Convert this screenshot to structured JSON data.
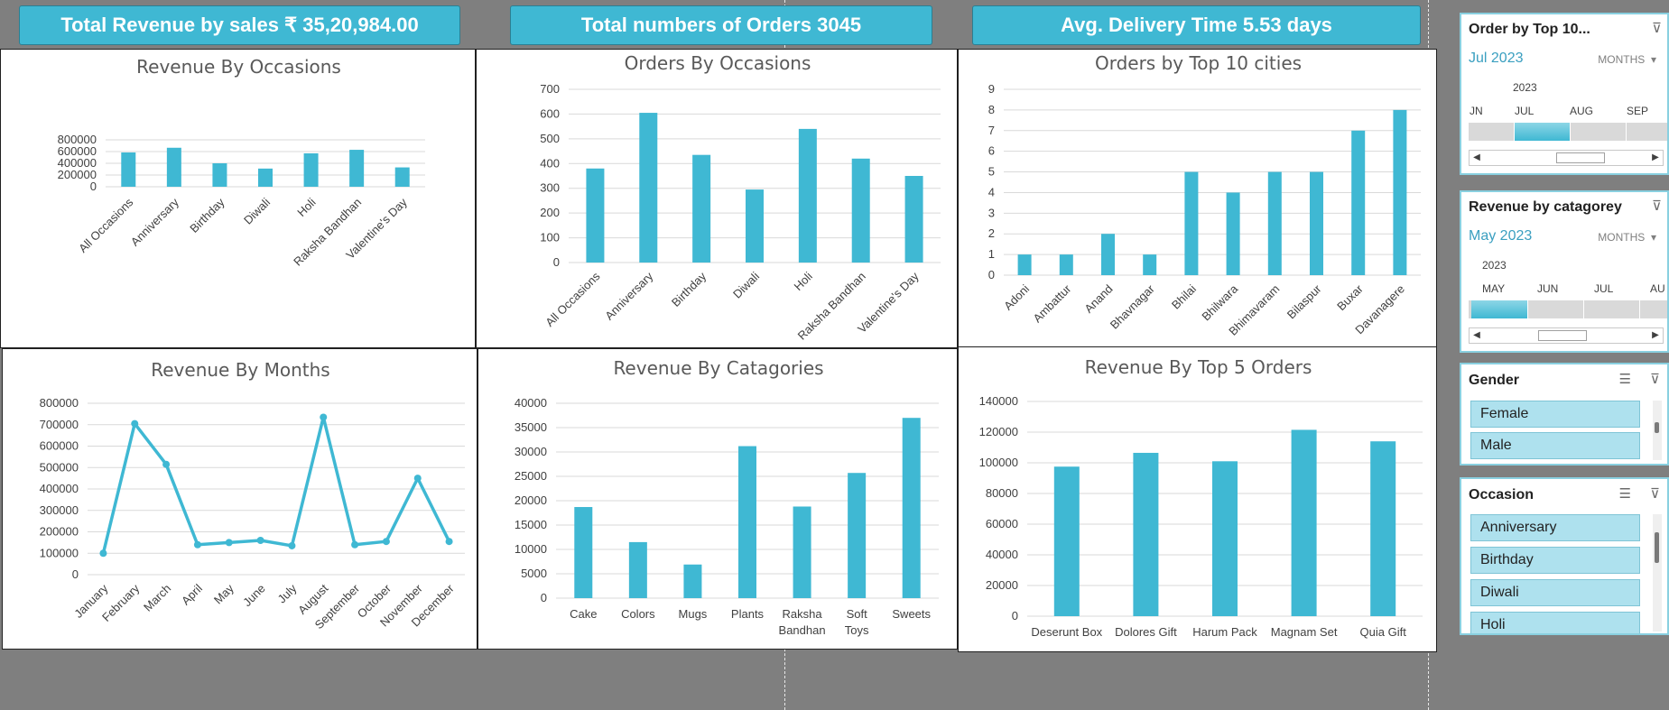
{
  "kpis": {
    "revenue": "Total Revenue by sales  ₹ 35,20,984.00",
    "orders": "Total numbers of Orders 3045",
    "delivery": "Avg. Delivery Time 5.53 days"
  },
  "charts": [
    {
      "id": "rev_occ",
      "type": "bar",
      "title": "Revenue By  Occasions",
      "categories": [
        "All Occasions",
        "Anniversary",
        "Birthday",
        "Diwali",
        "Holi",
        "Raksha Bandhan",
        "Valentine's Day"
      ],
      "values": [
        585000,
        665000,
        400000,
        310000,
        570000,
        630000,
        330000
      ],
      "yticks": [
        "0",
        "200000",
        "400000",
        "600000",
        "800000"
      ],
      "ylim": [
        0,
        800000
      ]
    },
    {
      "id": "ord_occ",
      "type": "bar",
      "title": "Orders By Occasions",
      "categories": [
        "All Occasions",
        "Anniversary",
        "Birthday",
        "Diwali",
        "Holi",
        "Raksha Bandhan",
        "Valentine's Day"
      ],
      "values": [
        380,
        605,
        435,
        295,
        540,
        420,
        350
      ],
      "yticks": [
        "0",
        "100",
        "200",
        "300",
        "400",
        "500",
        "600",
        "700"
      ],
      "ylim": [
        0,
        700
      ]
    },
    {
      "id": "ord_city",
      "type": "bar",
      "title": "Orders by Top 10 cities",
      "categories": [
        "Adoni",
        "Ambattur",
        "Anand",
        "Bhavnagar",
        "Bhilai",
        "Bhilwara",
        "Bhimavaram",
        "Bilaspur",
        "Buxar",
        "Davanagere"
      ],
      "values": [
        1,
        1,
        2,
        1,
        5,
        4,
        5,
        5,
        7,
        8
      ],
      "yticks": [
        "0",
        "1",
        "2",
        "3",
        "4",
        "5",
        "6",
        "7",
        "8",
        "9"
      ],
      "ylim": [
        0,
        9
      ]
    },
    {
      "id": "rev_month",
      "type": "line",
      "title": "Revenue By Months",
      "categories": [
        "January",
        "February",
        "March",
        "April",
        "May",
        "June",
        "July",
        "August",
        "September",
        "October",
        "November",
        "December"
      ],
      "values": [
        100000,
        705000,
        515000,
        140000,
        150000,
        160000,
        135000,
        735000,
        140000,
        155000,
        450000,
        155000
      ],
      "yticks": [
        "0",
        "100000",
        "200000",
        "300000",
        "400000",
        "500000",
        "600000",
        "700000",
        "800000"
      ],
      "ylim": [
        0,
        800000
      ]
    },
    {
      "id": "rev_cat",
      "type": "bar",
      "title": "Revenue By Catagories",
      "categories": [
        "Cake",
        "Colors",
        "Mugs",
        "Plants",
        "Raksha Bandhan",
        "Soft Toys",
        "Sweets"
      ],
      "values": [
        18700,
        11500,
        6900,
        31200,
        18800,
        25700,
        37000
      ],
      "yticks": [
        "0",
        "5000",
        "10000",
        "15000",
        "20000",
        "25000",
        "30000",
        "35000",
        "40000"
      ],
      "ylim": [
        0,
        40000
      ]
    },
    {
      "id": "rev_top5",
      "type": "bar",
      "title": "Revenue By Top 5 Orders",
      "categories": [
        "Deserunt Box",
        "Dolores Gift",
        "Harum Pack",
        "Magnam Set",
        "Quia Gift"
      ],
      "values": [
        97500,
        106500,
        101000,
        121500,
        114000
      ],
      "yticks": [
        "0",
        "20000",
        "40000",
        "60000",
        "80000",
        "100000",
        "120000",
        "140000"
      ],
      "ylim": [
        0,
        140000
      ]
    }
  ],
  "slicers": {
    "top10": {
      "header": "Order by Top 10...",
      "period": "Jul 2023",
      "level": "MONTHS",
      "year": "2023",
      "months": [
        "JN",
        "JUL",
        "AUG",
        "SEP"
      ]
    },
    "category": {
      "header": "Revenue by catagorey",
      "period": "May 2023",
      "level": "MONTHS",
      "year": "2023",
      "months": [
        "MAY",
        "JUN",
        "JUL",
        "AU"
      ]
    },
    "gender": {
      "header": "Gender",
      "items": [
        "Female",
        "Male"
      ]
    },
    "occasion": {
      "header": "Occasion",
      "items": [
        "Anniversary",
        "Birthday",
        "Diwali",
        "Holi"
      ]
    }
  },
  "colors": {
    "accent": "#3fb8d3",
    "background": "#7f7f7f"
  }
}
